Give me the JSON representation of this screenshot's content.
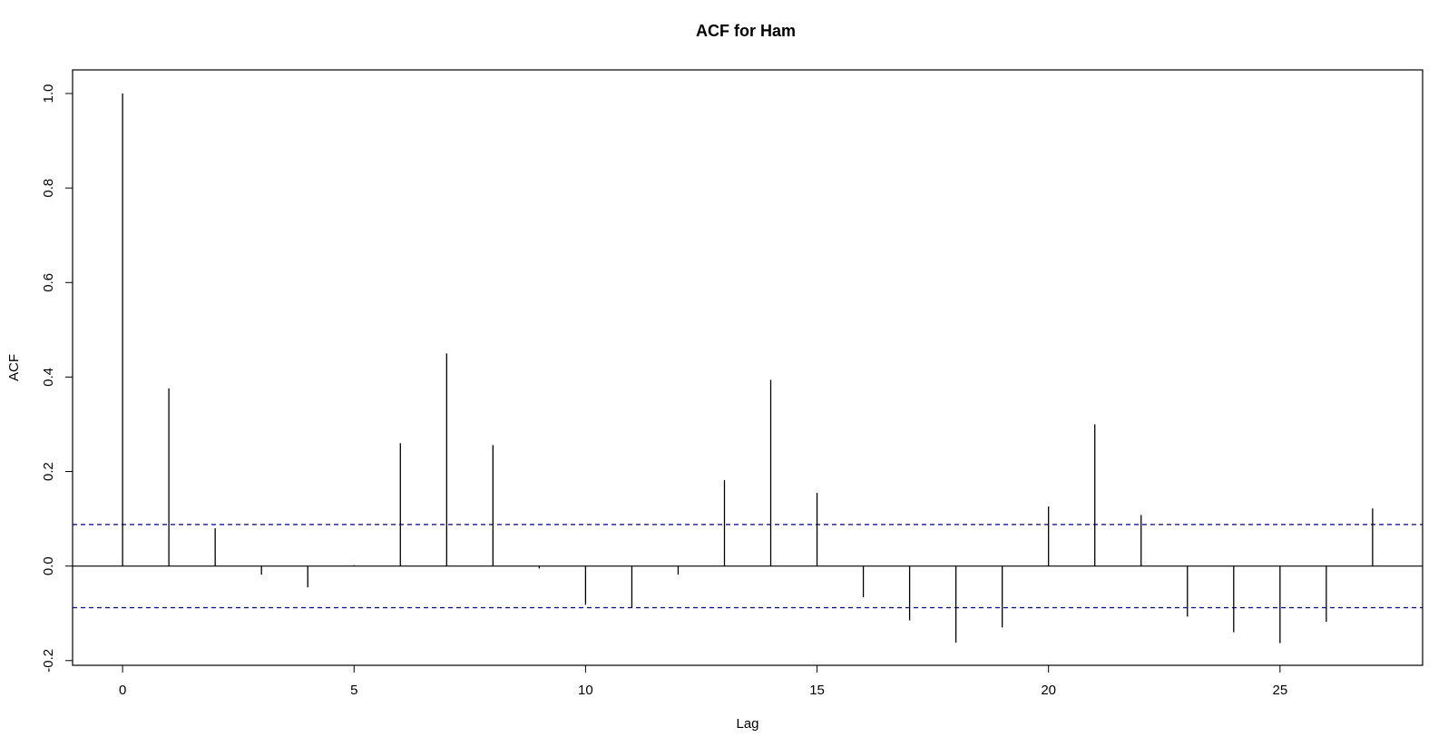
{
  "chart_data": {
    "type": "bar",
    "title": "ACF for Ham",
    "xlabel": "Lag",
    "ylabel": "ACF",
    "xlim": [
      -1.08,
      28.08
    ],
    "ylim": [
      -0.21,
      1.05
    ],
    "x_ticks": [
      0,
      5,
      10,
      15,
      20,
      25
    ],
    "y_ticks": [
      -0.2,
      0.0,
      0.2,
      0.4,
      0.6,
      0.8,
      1.0
    ],
    "x_tick_labels": [
      "0",
      "5",
      "10",
      "15",
      "20",
      "25"
    ],
    "y_tick_labels": [
      "-0.2",
      "0.0",
      "0.2",
      "0.4",
      "0.6",
      "0.8",
      "1.0"
    ],
    "confidence_band": 0.088,
    "band_color": "#00008B",
    "spike_color": "#000000",
    "zero_line": true,
    "grid": false,
    "lags": [
      0,
      1,
      2,
      3,
      4,
      5,
      6,
      7,
      8,
      9,
      10,
      11,
      12,
      13,
      14,
      15,
      16,
      17,
      18,
      19,
      20,
      21,
      22,
      23,
      24,
      25,
      26,
      27
    ],
    "acf": [
      1.0,
      0.376,
      0.08,
      -0.018,
      -0.045,
      0.002,
      0.26,
      0.45,
      0.256,
      -0.005,
      -0.082,
      -0.088,
      -0.018,
      0.182,
      0.394,
      0.155,
      -0.066,
      -0.115,
      -0.162,
      -0.13,
      0.126,
      0.3,
      0.108,
      -0.107,
      -0.14,
      -0.163,
      -0.118,
      0.122
    ]
  }
}
